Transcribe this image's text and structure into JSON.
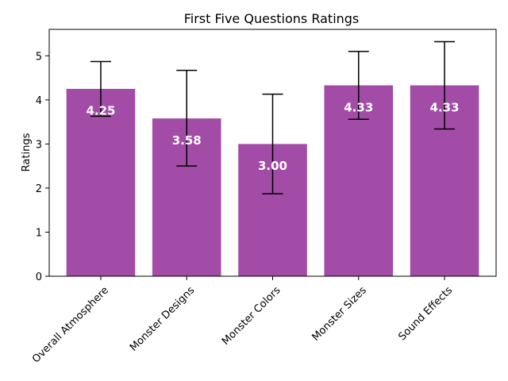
{
  "chart_data": {
    "type": "bar",
    "title": "First Five Questions Ratings",
    "xlabel": "",
    "ylabel": "Ratings",
    "categories": [
      "Overall Atmosphere",
      "Monster Designs",
      "Monster Colors",
      "Monster Sizes",
      "Sound Effects"
    ],
    "values": [
      4.25,
      3.58,
      3.0,
      4.33,
      4.33
    ],
    "value_labels": [
      "4.25",
      "3.58",
      "3.00",
      "4.33",
      "4.33"
    ],
    "error_low": [
      3.63,
      2.5,
      1.87,
      3.56,
      3.34
    ],
    "error_high": [
      4.87,
      4.67,
      4.13,
      5.1,
      5.32
    ],
    "ylim": [
      0,
      5.6
    ],
    "yticks": [
      0,
      1,
      2,
      3,
      4,
      5
    ],
    "ytick_labels": [
      "0",
      "1",
      "2",
      "3",
      "4",
      "5"
    ],
    "bar_color": "#a24ba7",
    "grid": false
  }
}
